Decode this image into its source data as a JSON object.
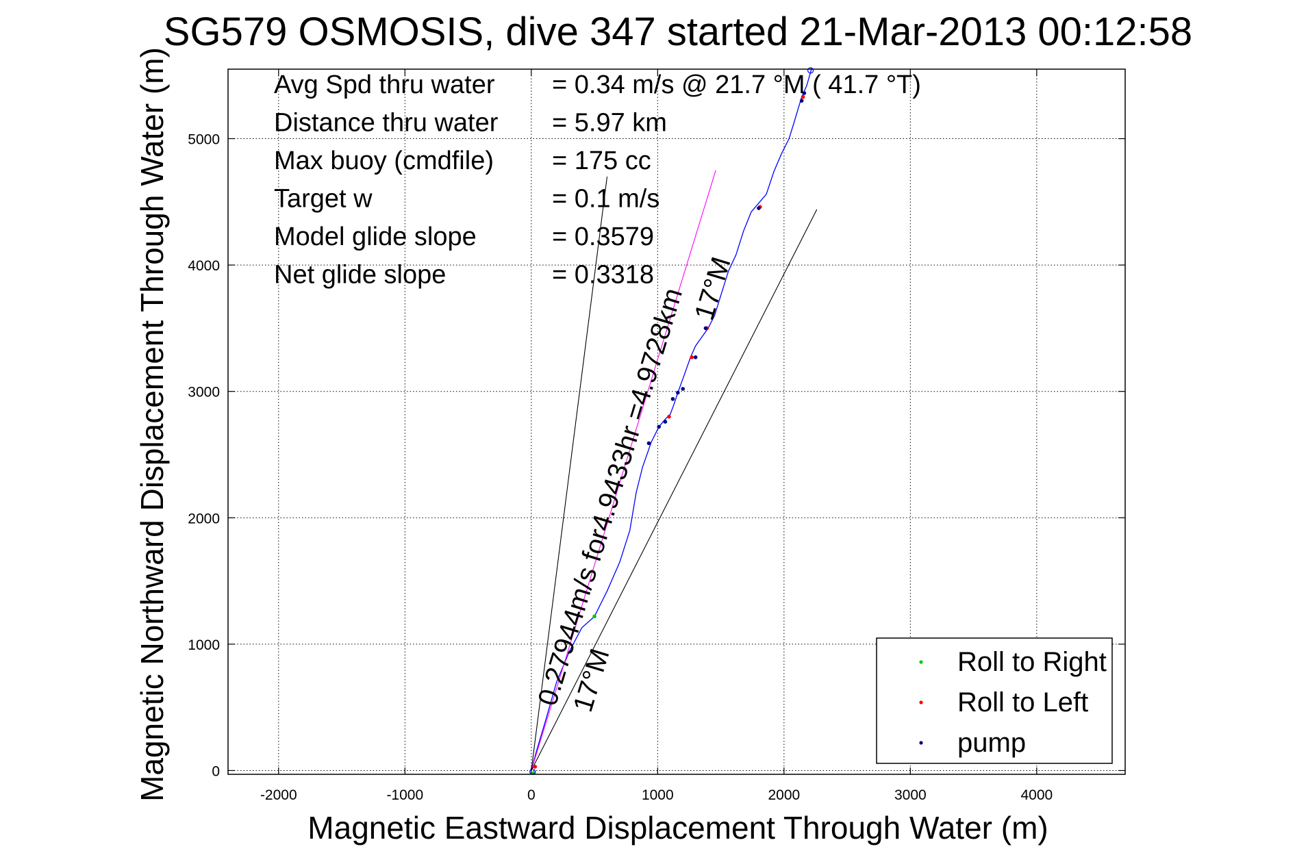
{
  "chart_data": {
    "type": "line",
    "title": "SG579 OSMOSIS, dive 347 started 21-Mar-2013 00:12:58",
    "xlabel": "Magnetic Eastward Displacement Through Water (m)",
    "ylabel": "Magnetic Northward Displacement Through Water (m)",
    "xlim": [
      -2400,
      4700
    ],
    "ylim": [
      -30,
      5550
    ],
    "xticks": [
      -2000,
      -1000,
      0,
      1000,
      2000,
      3000,
      4000
    ],
    "yticks": [
      0,
      1000,
      2000,
      3000,
      4000,
      5000
    ],
    "grid": true,
    "legend_position": "bottom-right",
    "stats": [
      {
        "label": "Avg Spd thru water",
        "value": "=  0.34 m/s @  21.7 °M ( 41.7 °T)"
      },
      {
        "label": "Distance thru water",
        "value": "=  5.97 km"
      },
      {
        "label": "Max buoy (cmdfile)",
        "value": "= 175 cc"
      },
      {
        "label": "Target w",
        "value": "= 0.1 m/s"
      },
      {
        "label": "Model glide slope",
        "value": "= 0.3579"
      },
      {
        "label": "Net glide slope",
        "value": "= 0.3318"
      }
    ],
    "annotations": [
      {
        "text": "0.27944m/s for4.9433hr =4.9728km",
        "x": 190,
        "y": 500,
        "angle_deg": 73
      },
      {
        "text": "17°M",
        "x": 1430,
        "y": 3550,
        "angle_deg": 73
      },
      {
        "text": "17°M",
        "x": 470,
        "y": 450,
        "angle_deg": 73
      }
    ],
    "series": [
      {
        "name": "",
        "kind": "track",
        "color": "#0000ff",
        "x": [
          0,
          40,
          120,
          200,
          300,
          400,
          500,
          600,
          700,
          780,
          830,
          880,
          950,
          1010,
          1060,
          1100,
          1130,
          1160,
          1200,
          1260,
          1300,
          1350,
          1400,
          1450,
          1500,
          1560,
          1620,
          1680,
          1740,
          1800,
          1860,
          1920,
          1980,
          2040,
          2080,
          2110,
          2140,
          2180,
          2220
        ],
        "y": [
          0,
          150,
          420,
          700,
          940,
          1130,
          1220,
          1420,
          1650,
          1900,
          2200,
          2400,
          2600,
          2720,
          2780,
          2820,
          2900,
          2990,
          3100,
          3270,
          3360,
          3430,
          3500,
          3600,
          3760,
          3950,
          4080,
          4270,
          4420,
          4490,
          4560,
          4740,
          4880,
          5000,
          5130,
          5230,
          5330,
          5420,
          5560
        ]
      },
      {
        "name": "",
        "kind": "line",
        "color": "#ff00ff",
        "x": [
          0,
          1460
        ],
        "y": [
          0,
          4750
        ]
      },
      {
        "name": "",
        "kind": "line",
        "color": "#000000",
        "x": [
          0,
          600
        ],
        "y": [
          0,
          4700
        ]
      },
      {
        "name": "",
        "kind": "line",
        "color": "#000000",
        "x": [
          0,
          2260
        ],
        "y": [
          0,
          4440
        ]
      },
      {
        "name": "Roll to Right",
        "kind": "points",
        "color": "#00cc00",
        "x": [
          500,
          20
        ],
        "y": [
          1220,
          -20
        ]
      },
      {
        "name": "Roll to Left",
        "kind": "points",
        "color": "#ff0000",
        "x": [
          1090,
          1390,
          1810,
          1270,
          30,
          2150
        ],
        "y": [
          2800,
          3500,
          4460,
          3270,
          30,
          5330
        ]
      },
      {
        "name": "pump",
        "kind": "points",
        "color": "#000080",
        "x": [
          930,
          1010,
          1060,
          1120,
          1160,
          1200,
          1300,
          1380,
          1800,
          2140,
          2160
        ],
        "y": [
          2590,
          2720,
          2760,
          2940,
          2990,
          3020,
          3270,
          3500,
          4450,
          5300,
          5360
        ]
      },
      {
        "name": "",
        "kind": "open-circles",
        "color": "#0000ff",
        "x": [
          2210,
          10
        ],
        "y": [
          5540,
          -10
        ]
      }
    ]
  }
}
